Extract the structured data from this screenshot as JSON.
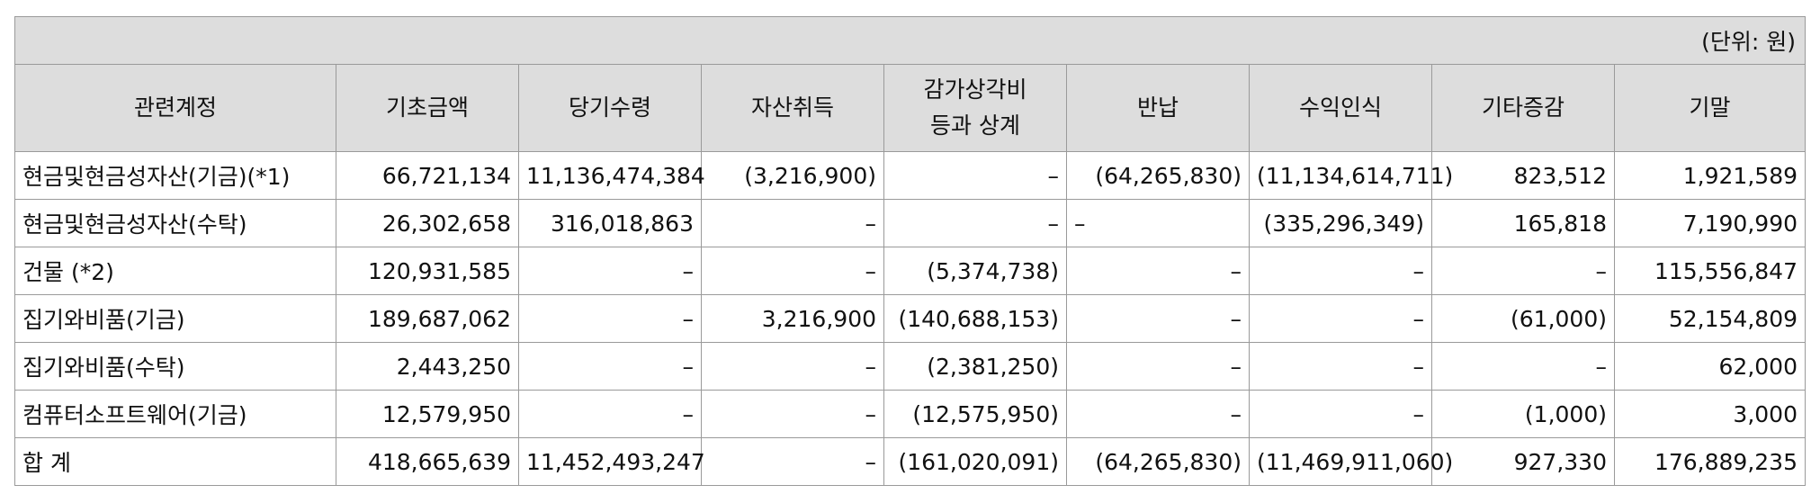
{
  "unit": "(단위: 원)",
  "headers": [
    "관련계정",
    "기초금액",
    "당기수령",
    "자산취득",
    "감가상각비\n등과 상계",
    "반납",
    "수익인식",
    "기타증감",
    "기말"
  ],
  "rows": [
    {
      "label": "현금및현금성자산(기금)(*1)",
      "values": [
        "66,721,134",
        "11,136,474,384",
        "(3,216,900)",
        "–",
        "(64,265,830)",
        "(11,134,614,711)",
        "823,512",
        "1,921,589"
      ]
    },
    {
      "label": "현금및현금성자산(수탁)",
      "values": [
        "26,302,658",
        "316,018,863",
        "–",
        "–",
        "–",
        "(335,296,349)",
        "165,818",
        "7,190,990"
      ]
    },
    {
      "label": "건물 (*2)",
      "values": [
        "120,931,585",
        "–",
        "–",
        "(5,374,738)",
        "–",
        "–",
        "–",
        "115,556,847"
      ]
    },
    {
      "label": "집기와비품(기금)",
      "values": [
        "189,687,062",
        "–",
        "3,216,900",
        "(140,688,153)",
        "–",
        "–",
        "(61,000)",
        "52,154,809"
      ]
    },
    {
      "label": "집기와비품(수탁)",
      "values": [
        "2,443,250",
        "–",
        "–",
        "(2,381,250)",
        "–",
        "–",
        "–",
        "62,000"
      ]
    },
    {
      "label": "컴퓨터소프트웨어(기금)",
      "values": [
        "12,579,950",
        "–",
        "–",
        "(12,575,950)",
        "–",
        "–",
        "(1,000)",
        "3,000"
      ]
    },
    {
      "label": "합  계",
      "values": [
        "418,665,639",
        "11,452,493,247",
        "–",
        "(161,020,091)",
        "(64,265,830)",
        "(11,469,911,060)",
        "927,330",
        "176,889,235"
      ]
    }
  ]
}
